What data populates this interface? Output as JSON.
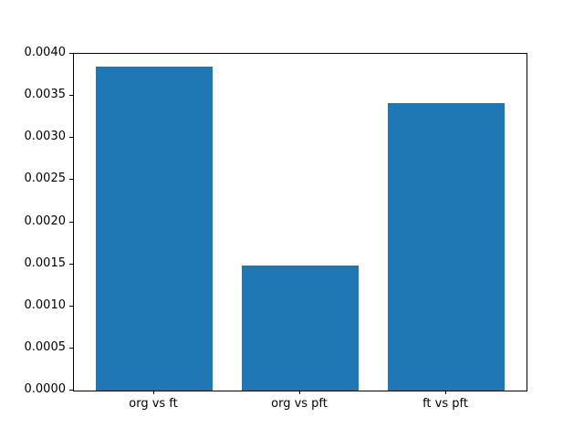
{
  "chart_data": {
    "type": "bar",
    "categories": [
      "org vs ft",
      "org vs pft",
      "ft vs pft"
    ],
    "values": [
      0.00385,
      0.00149,
      0.00342
    ],
    "title": "",
    "xlabel": "",
    "ylabel": "",
    "ylim": [
      0,
      0.004
    ],
    "ytick_step": 0.0005,
    "ytick_labels": [
      "0.0000",
      "0.0005",
      "0.0010",
      "0.0015",
      "0.0020",
      "0.0025",
      "0.0030",
      "0.0035",
      "0.0040"
    ],
    "bar_color": "#1f77b4",
    "grid": false,
    "legend": false
  }
}
